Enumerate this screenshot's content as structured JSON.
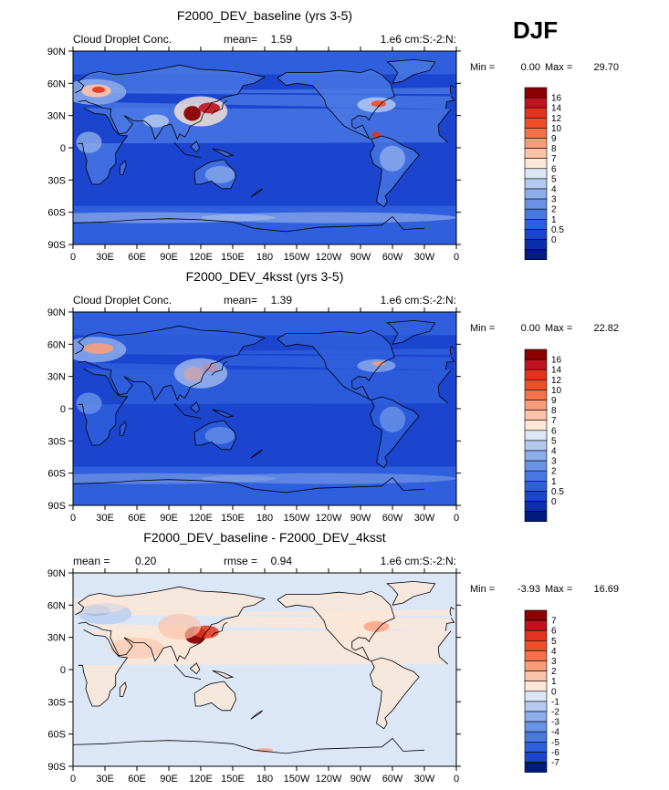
{
  "season_label": "DJF",
  "chart_data": [
    {
      "type": "heatmap",
      "title": "F2000_DEV_baseline (yrs 3-5)",
      "left_label": "Cloud Droplet Conc.",
      "stat_label": "mean=",
      "stat_value": "1.59",
      "units": "1.e6 cm:S:-2:N:",
      "min_label": "Min =",
      "min_value": "0.00",
      "max_label": "Max =",
      "max_value": "29.70",
      "x_ticks": [
        "0",
        "30E",
        "60E",
        "90E",
        "120E",
        "150E",
        "180",
        "150W",
        "120W",
        "90W",
        "60W",
        "30W",
        "0"
      ],
      "y_ticks": [
        "90N",
        "60N",
        "30N",
        "0",
        "30S",
        "60S",
        "90S"
      ],
      "colorbar_labels": [
        "16",
        "14",
        "12",
        "10",
        "9",
        "8",
        "7",
        "6",
        "5",
        "4",
        "3",
        "2",
        "1",
        "0.5",
        "0"
      ]
    },
    {
      "type": "heatmap",
      "title": "F2000_DEV_4ksst (yrs 3-5)",
      "left_label": "Cloud Droplet Conc.",
      "stat_label": "mean=",
      "stat_value": "1.39",
      "units": "1.e6 cm:S:-2:N:",
      "min_label": "Min =",
      "min_value": "0.00",
      "max_label": "Max =",
      "max_value": "22.82",
      "x_ticks": [
        "0",
        "30E",
        "60E",
        "90E",
        "120E",
        "150E",
        "180",
        "150W",
        "120W",
        "90W",
        "60W",
        "30W",
        "0"
      ],
      "y_ticks": [
        "90N",
        "60N",
        "30N",
        "0",
        "30S",
        "60S",
        "90S"
      ],
      "colorbar_labels": [
        "16",
        "14",
        "12",
        "10",
        "9",
        "8",
        "7",
        "6",
        "5",
        "4",
        "3",
        "2",
        "1",
        "0.5",
        "0"
      ]
    },
    {
      "type": "heatmap",
      "title": "F2000_DEV_baseline - F2000_DEV_4ksst",
      "left_label": "mean =",
      "left_value": "0.20",
      "stat_label": "rmse =",
      "stat_value": "0.94",
      "units": "1.e6 cm:S:-2:N:",
      "min_label": "Min =",
      "min_value": "-3.93",
      "max_label": "Max =",
      "max_value": "16.69",
      "x_ticks": [
        "0",
        "30E",
        "60E",
        "90E",
        "120E",
        "150E",
        "180",
        "150W",
        "120W",
        "90W",
        "60W",
        "30W",
        "0"
      ],
      "y_ticks": [
        "90N",
        "60N",
        "30N",
        "0",
        "30S",
        "60S",
        "90S"
      ],
      "colorbar_labels": [
        "7",
        "6",
        "5",
        "4",
        "3",
        "2",
        "1",
        "0",
        "-1",
        "-2",
        "-3",
        "-4",
        "-5",
        "-6",
        "-7"
      ]
    }
  ]
}
